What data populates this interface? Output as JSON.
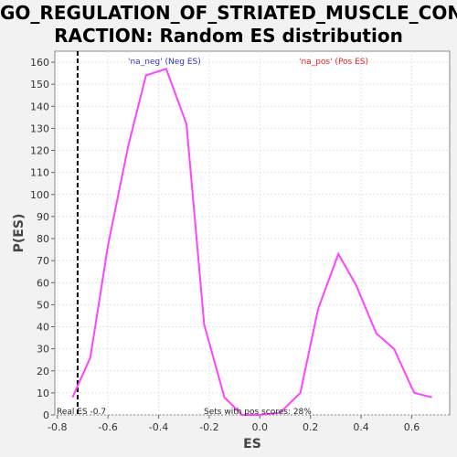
{
  "chart_data": {
    "type": "line",
    "title_line1": "GO_REGULATION_OF_STRIATED_MUSCLE_CONT",
    "title_line2": "RACTION: Random ES distribution",
    "xlabel": "ES",
    "ylabel": "P(ES)",
    "xlim": [
      -0.81,
      0.75
    ],
    "ylim": [
      0,
      165
    ],
    "x_ticks": [
      -0.8,
      -0.6,
      -0.4,
      -0.2,
      0.0,
      0.2,
      0.4,
      0.6
    ],
    "x_tick_labels": [
      "-0.8",
      "-0.6",
      "-0.4",
      "-0.2",
      "0.0",
      "0.2",
      "0.4",
      "0.6"
    ],
    "y_ticks": [
      0,
      10,
      20,
      30,
      40,
      50,
      60,
      70,
      80,
      90,
      100,
      110,
      120,
      130,
      140,
      150,
      160
    ],
    "grid": true,
    "series": [
      {
        "color": "#ff44ff",
        "x": [
          -0.74,
          -0.67,
          -0.6,
          -0.52,
          -0.45,
          -0.37,
          -0.29,
          -0.22,
          -0.14,
          -0.07,
          0.0,
          0.08,
          0.16,
          0.23,
          0.31,
          0.38,
          0.46,
          0.53,
          0.61,
          0.68
        ],
        "y": [
          8,
          26,
          77,
          122,
          154,
          157,
          132,
          41,
          8,
          0,
          0,
          1,
          10,
          48,
          73,
          59,
          37,
          30,
          10,
          8
        ]
      }
    ],
    "real_es": {
      "x": -0.72,
      "label": "Real ES -0.7"
    },
    "annotations": {
      "neg": "'na_neg' (Neg ES)",
      "pos": "'na_pos' (Pos ES)",
      "pos_scores": "Sets with pos scores: 28%"
    },
    "colors": {
      "neg_label": "#3333cc",
      "pos_label": "#ee2222",
      "curve": "#ff44ff"
    }
  }
}
